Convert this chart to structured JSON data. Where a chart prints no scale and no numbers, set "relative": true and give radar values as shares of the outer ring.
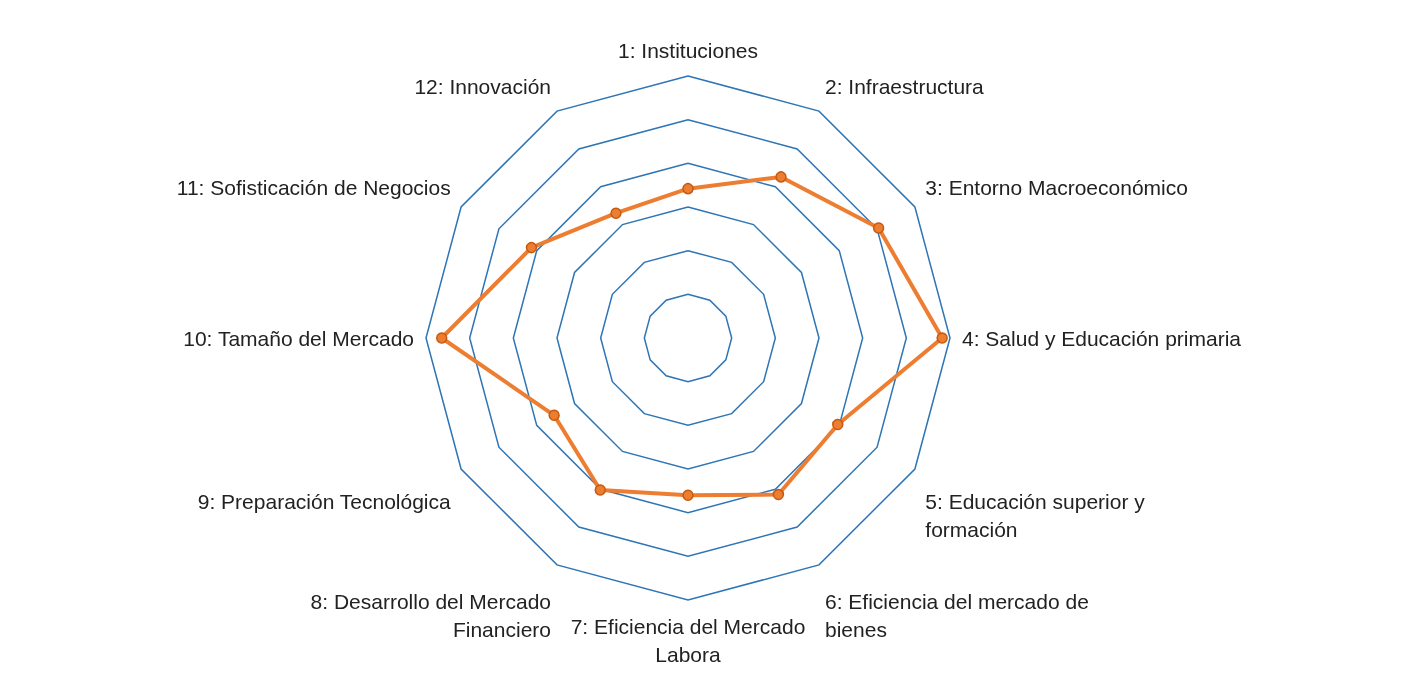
{
  "chart_data": {
    "type": "radar",
    "relative": true,
    "marker": "circle",
    "line_style": "solid",
    "categories": [
      "1: Instituciones",
      "2: Infraestructura",
      "3: Entorno Macroeconómico",
      "4: Salud y Educación primaria",
      "5: Educación superior y\nformación",
      "6: Eficiencia del mercado de\nbienes",
      "7: Eficiencia del Mercado\nLabora",
      "8: Desarrollo del Mercado\nFinanciero",
      "9: Preparación Tecnológica",
      "10: Tamaño del Mercado",
      "11: Sofisticación de Negocios",
      "12: Innovación"
    ],
    "series": [
      {
        "color": "#ed7d31",
        "values": [
          0.57,
          0.71,
          0.84,
          0.97,
          0.66,
          0.69,
          0.6,
          0.67,
          0.59,
          0.94,
          0.69,
          0.55
        ]
      }
    ]
  }
}
